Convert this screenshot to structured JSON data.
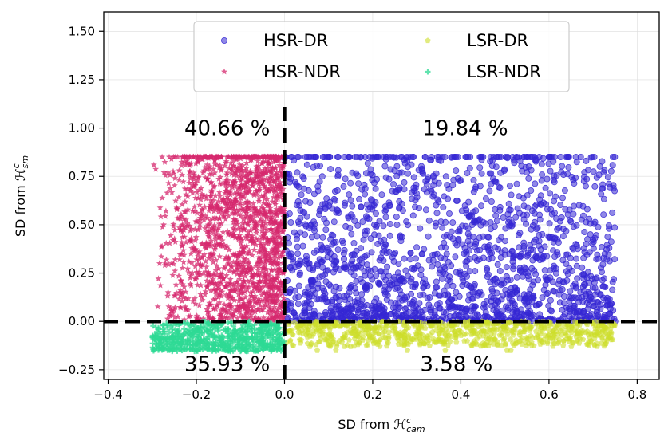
{
  "chart_data": {
    "type": "scatter",
    "xlim": [
      -0.41,
      0.85
    ],
    "ylim": [
      -0.3,
      1.6
    ],
    "x_ticks": [
      -0.4,
      -0.2,
      0.0,
      0.2,
      0.4,
      0.6,
      0.8
    ],
    "x_tick_labels": [
      "−0.4",
      "−0.2",
      "0.0",
      "0.2",
      "0.4",
      "0.6",
      "0.8"
    ],
    "y_ticks": [
      -0.25,
      0.0,
      0.25,
      0.5,
      0.75,
      1.0,
      1.25,
      1.5
    ],
    "y_tick_labels": [
      "−0.25",
      "0.00",
      "0.25",
      "0.50",
      "0.75",
      "1.00",
      "1.25",
      "1.50"
    ],
    "xlabel": {
      "prefix": "SD from ",
      "symbol": "ℋ",
      "sup": "c",
      "sub": "cam"
    },
    "ylabel": {
      "prefix": "SD from ",
      "symbol": "ℋ",
      "sup": "c",
      "sub": "sm"
    },
    "grid": true,
    "legend_position": "top-center",
    "legend_columns": 2,
    "series": [
      {
        "name": "HSR-DR",
        "color": "#3527d4",
        "marker": "circle",
        "x_range": [
          0.0,
          0.75
        ],
        "y_range": [
          0.0,
          0.85
        ]
      },
      {
        "name": "HSR-NDR",
        "color": "#d6286e",
        "marker": "star",
        "x_range": [
          -0.3,
          0.0
        ],
        "y_range": [
          0.0,
          0.85
        ]
      },
      {
        "name": "LSR-DR",
        "color": "#cddd2a",
        "marker": "pentagon",
        "x_range": [
          0.0,
          0.75
        ],
        "y_range": [
          -0.15,
          0.0
        ]
      },
      {
        "name": "LSR-NDR",
        "color": "#2ed994",
        "marker": "plus",
        "x_range": [
          -0.3,
          0.0
        ],
        "y_range": [
          -0.16,
          0.0
        ]
      }
    ],
    "reference_lines": [
      {
        "orientation": "horizontal",
        "value": 0.0,
        "style": "dashed",
        "color": "#000000"
      },
      {
        "orientation": "vertical",
        "value": 0.0,
        "style": "dashed",
        "color": "#000000"
      }
    ],
    "annotations": [
      {
        "text": "40.66 %",
        "x": -0.13,
        "y": 1.0
      },
      {
        "text": "19.84 %",
        "x": 0.41,
        "y": 1.0
      },
      {
        "text": "35.93 %",
        "x": -0.13,
        "y": -0.22
      },
      {
        "text": "3.58 %",
        "x": 0.39,
        "y": -0.22
      }
    ]
  }
}
